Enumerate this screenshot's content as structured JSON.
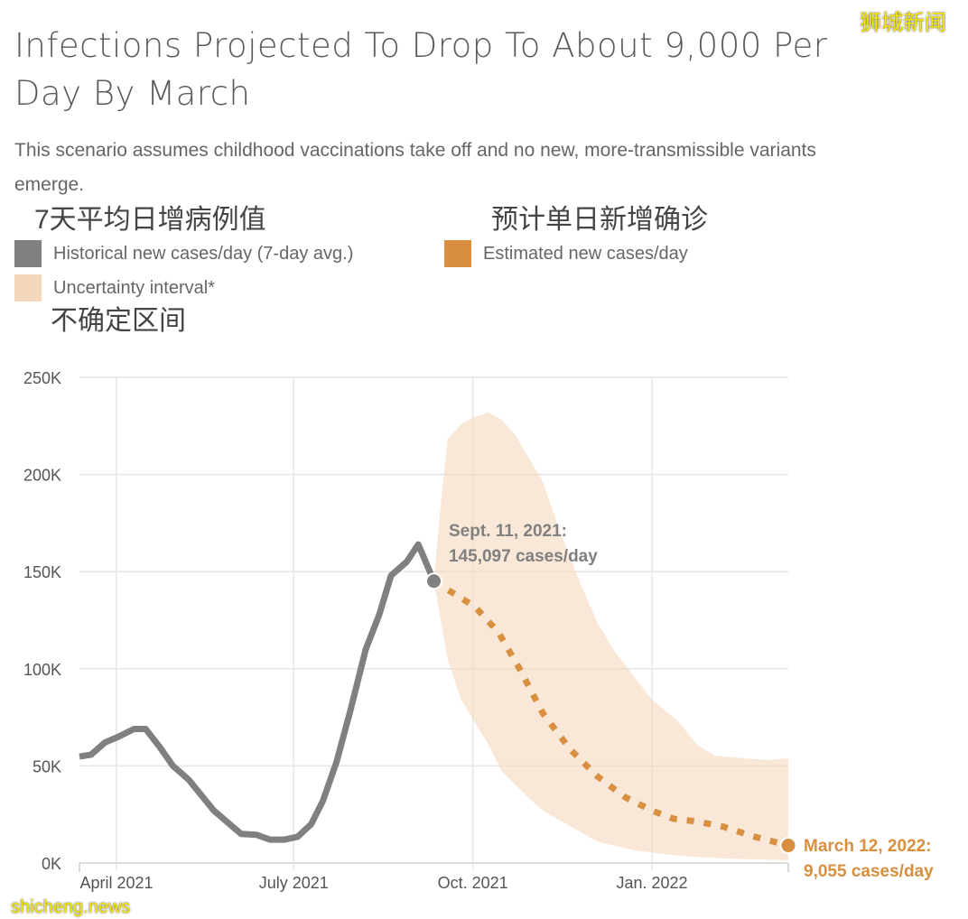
{
  "header": {
    "title": "Infections Projected To Drop To About 9,000 Per Day By March",
    "subtitle": "This scenario assumes childhood vaccinations take off and no new, more-transmissible variants emerge."
  },
  "legend": {
    "items": [
      {
        "label": "Historical new cases/day (7-day avg.)",
        "color": "#808080"
      },
      {
        "label": "Estimated new cases/day",
        "color": "#d98f40"
      },
      {
        "label": "Uncertainty interval*",
        "color": "#f5d8bc"
      }
    ]
  },
  "overlay_text": {
    "historical_cn": "7天平均日增病例值",
    "estimated_cn": "预计单日新增确诊",
    "uncertainty_cn": "不确定区间"
  },
  "watermarks": {
    "top_right": "狮城新闻",
    "bottom_left": "shicheng.news"
  },
  "chart_data": {
    "type": "line",
    "title": "Infections Projected To Drop To About 9,000 Per Day By March",
    "xlabel": "",
    "ylabel": "",
    "xlim": [
      "2021-03-13",
      "2022-03-12"
    ],
    "ylim": [
      0,
      250000
    ],
    "grid": true,
    "legend_position": "top",
    "y_ticks": [
      {
        "value": 0,
        "label": "0K"
      },
      {
        "value": 50000,
        "label": "50K"
      },
      {
        "value": 100000,
        "label": "100K"
      },
      {
        "value": 150000,
        "label": "150K"
      },
      {
        "value": 200000,
        "label": "200K"
      },
      {
        "value": 250000,
        "label": "250K"
      }
    ],
    "x_ticks": [
      {
        "date": "2021-04-01",
        "label": "April 2021"
      },
      {
        "date": "2021-07-01",
        "label": "July 2021"
      },
      {
        "date": "2021-10-01",
        "label": "Oct. 2021"
      },
      {
        "date": "2022-01-01",
        "label": "Jan. 2022"
      }
    ],
    "series": [
      {
        "name": "Historical new cases/day (7-day avg.)",
        "color": "#808080",
        "style": "solid",
        "points": [
          [
            "2021-03-13",
            54800
          ],
          [
            "2021-03-19",
            55800
          ],
          [
            "2021-03-26",
            62000
          ],
          [
            "2021-04-02",
            65000
          ],
          [
            "2021-04-10",
            69000
          ],
          [
            "2021-04-16",
            69000
          ],
          [
            "2021-04-23",
            60000
          ],
          [
            "2021-04-30",
            50000
          ],
          [
            "2021-05-08",
            43000
          ],
          [
            "2021-05-21",
            27000
          ],
          [
            "2021-05-28",
            21000
          ],
          [
            "2021-06-04",
            15000
          ],
          [
            "2021-06-12",
            14500
          ],
          [
            "2021-06-19",
            12000
          ],
          [
            "2021-06-26",
            12000
          ],
          [
            "2021-07-03",
            13500
          ],
          [
            "2021-07-10",
            20000
          ],
          [
            "2021-07-16",
            32000
          ],
          [
            "2021-07-23",
            52000
          ],
          [
            "2021-07-30",
            78000
          ],
          [
            "2021-08-07",
            110000
          ],
          [
            "2021-08-14",
            128000
          ],
          [
            "2021-08-20",
            148000
          ],
          [
            "2021-08-28",
            155000
          ],
          [
            "2021-09-03",
            164000
          ],
          [
            "2021-09-11",
            145097
          ]
        ]
      },
      {
        "name": "Estimated new cases/day",
        "color": "#d98f40",
        "style": "dotted",
        "points": [
          [
            "2021-09-11",
            145097
          ],
          [
            "2021-10-02",
            132000
          ],
          [
            "2021-10-14",
            119000
          ],
          [
            "2021-10-25",
            100000
          ],
          [
            "2021-11-06",
            77000
          ],
          [
            "2021-11-20",
            58500
          ],
          [
            "2021-12-04",
            44600
          ],
          [
            "2021-12-18",
            34000
          ],
          [
            "2022-01-01",
            27000
          ],
          [
            "2022-01-12",
            22800
          ],
          [
            "2022-01-24",
            21400
          ],
          [
            "2022-02-07",
            18600
          ],
          [
            "2022-02-21",
            14000
          ],
          [
            "2022-03-12",
            9055
          ]
        ]
      }
    ],
    "band": {
      "name": "Uncertainty interval*",
      "color": "#f5d8bc",
      "upper": [
        [
          "2021-09-11",
          145097
        ],
        [
          "2021-09-14",
          179000
        ],
        [
          "2021-09-18",
          218000
        ],
        [
          "2021-09-25",
          226000
        ],
        [
          "2021-10-02",
          229500
        ],
        [
          "2021-10-09",
          232000
        ],
        [
          "2021-10-16",
          228000
        ],
        [
          "2021-10-23",
          220000
        ],
        [
          "2021-10-30",
          208000
        ],
        [
          "2021-11-06",
          196000
        ],
        [
          "2021-11-15",
          170000
        ],
        [
          "2021-11-25",
          144500
        ],
        [
          "2021-12-04",
          123600
        ],
        [
          "2021-12-13",
          108700
        ],
        [
          "2021-12-23",
          95700
        ],
        [
          "2022-01-01",
          84000
        ],
        [
          "2022-01-15",
          72500
        ],
        [
          "2022-01-24",
          61000
        ],
        [
          "2022-02-02",
          55300
        ],
        [
          "2022-02-16",
          54000
        ],
        [
          "2022-03-02",
          53000
        ],
        [
          "2022-03-12",
          54000
        ]
      ],
      "lower": [
        [
          "2021-09-11",
          145097
        ],
        [
          "2021-09-14",
          128000
        ],
        [
          "2021-09-18",
          105000
        ],
        [
          "2021-09-25",
          84000
        ],
        [
          "2021-10-02",
          72500
        ],
        [
          "2021-10-09",
          61000
        ],
        [
          "2021-10-16",
          47000
        ],
        [
          "2021-10-28",
          35000
        ],
        [
          "2021-11-06",
          27000
        ],
        [
          "2021-11-20",
          19000
        ],
        [
          "2021-12-04",
          11000
        ],
        [
          "2021-12-23",
          6500
        ],
        [
          "2022-01-15",
          3700
        ],
        [
          "2022-02-07",
          2300
        ],
        [
          "2022-03-12",
          1400
        ]
      ]
    },
    "annotations": [
      {
        "date": "2021-09-11",
        "value": 145097,
        "line1": "Sept. 11, 2021:",
        "line2": "145,097 cases/day",
        "color": "#808080"
      },
      {
        "date": "2022-03-12",
        "value": 9055,
        "line1": "March 12, 2022:",
        "line2": "9,055 cases/day",
        "color": "#d98f40"
      }
    ]
  }
}
